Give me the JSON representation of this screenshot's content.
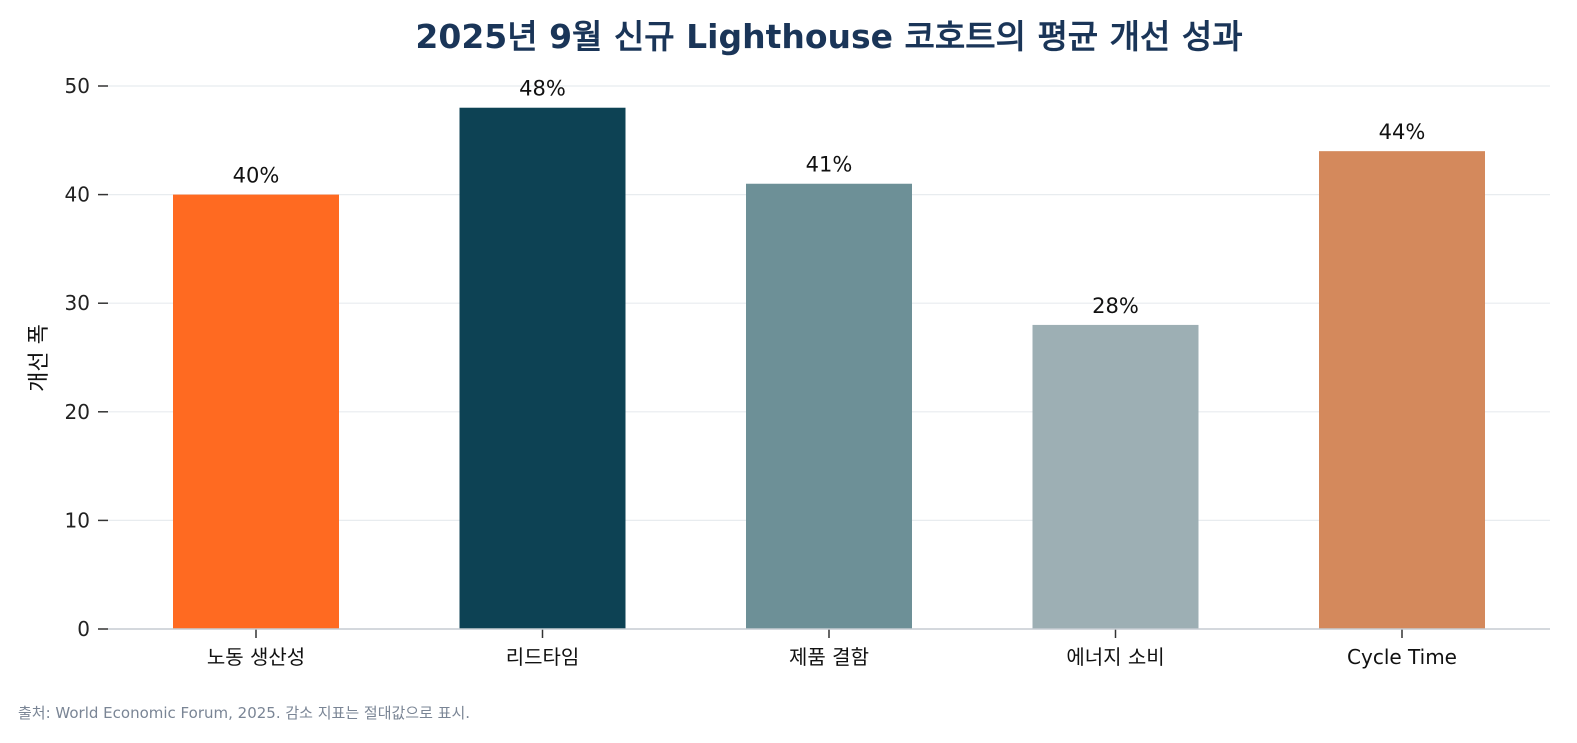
{
  "chart_data": {
    "type": "bar",
    "title": "2025년 9월 신규 Lighthouse 코호트의 평균 개선 성과",
    "xlabel": "",
    "ylabel": "개선 폭",
    "categories": [
      "노동 생산성",
      "리드타임",
      "제품 결함",
      "에너지 소비",
      "Cycle Time"
    ],
    "values": [
      40,
      48,
      41,
      28,
      44
    ],
    "data_labels": [
      "40%",
      "48%",
      "41%",
      "28%",
      "44%"
    ],
    "colors": [
      "#ff6a21",
      "#0d4254",
      "#6d9097",
      "#9dafb4",
      "#d4895c"
    ],
    "ylim": [
      0,
      50
    ],
    "yticks": [
      0,
      10,
      20,
      30,
      40,
      50
    ],
    "grid": true,
    "legend": "none"
  },
  "source_note": "출처: World Economic Forum, 2025. 감소 지표는 절대값으로 표시."
}
